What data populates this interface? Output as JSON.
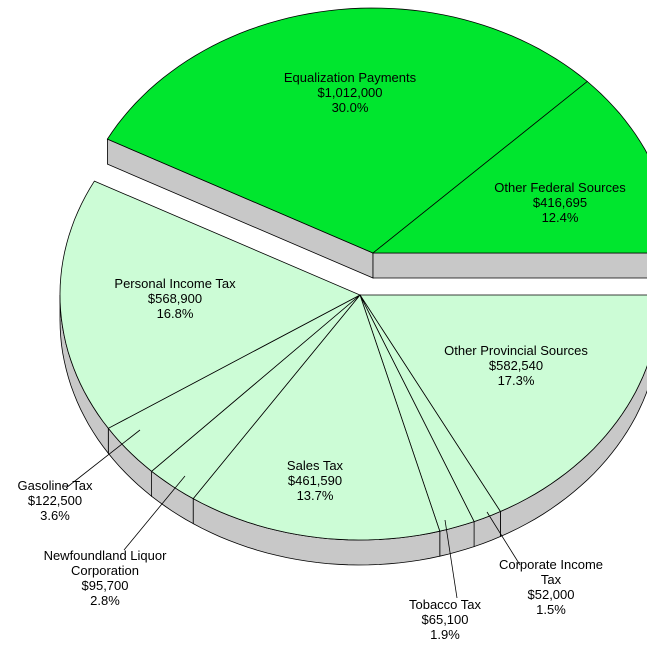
{
  "chart_data": {
    "type": "pie",
    "categories": [
      "Equalization Payments",
      "Other Federal Sources",
      "Other Provincial Sources",
      "Corporate Income Tax",
      "Tobacco Tax",
      "Sales Tax",
      "Newfoundland Liquor Corporation",
      "Gasoline Tax",
      "Personal Income Tax"
    ],
    "values": [
      1012000,
      416695,
      582540,
      52000,
      65100,
      461590,
      95700,
      122500,
      568900
    ],
    "value_labels": [
      "$1,012,000",
      "$416,695",
      "$582,540",
      "$52,000",
      "$65,100",
      "$461,590",
      "$95,700",
      "$122,500",
      "$568,900"
    ],
    "percents": [
      30.0,
      12.4,
      17.3,
      1.5,
      1.9,
      13.7,
      2.8,
      3.6,
      16.8
    ],
    "percent_labels": [
      "30.0%",
      "12.4%",
      "17.3%",
      "1.5%",
      "1.9%",
      "13.7%",
      "2.8%",
      "3.6%",
      "16.8%"
    ],
    "colors": [
      "#00e62e",
      "#00e62e",
      "#ccfcd6",
      "#ccfcd6",
      "#ccfcd6",
      "#ccfcd6",
      "#ccfcd6",
      "#ccfcd6",
      "#ccfcd6"
    ],
    "exploded": [
      true,
      true,
      false,
      false,
      false,
      false,
      false,
      false,
      false
    ]
  }
}
